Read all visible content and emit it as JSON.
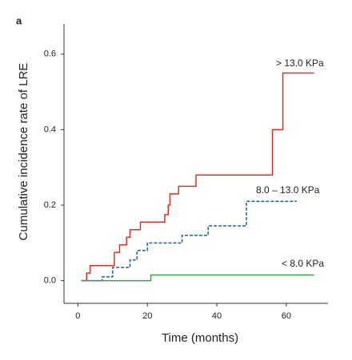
{
  "chart_data": {
    "type": "step",
    "panel_label": "a",
    "x_label": "Time (months)",
    "y_label": "Cumulative incidence rate of LRE",
    "xlim": [
      -4,
      72
    ],
    "ylim": [
      -0.06,
      0.68
    ],
    "xticks": [
      0,
      20,
      40,
      60
    ],
    "yticks": [
      {
        "value": 0,
        "label": "0.0"
      },
      {
        "value": 0.2,
        "label": "0.2"
      },
      {
        "value": 0.4,
        "label": "0.4"
      },
      {
        "value": 0.6,
        "label": "0.6"
      }
    ],
    "series": [
      {
        "name": "> 13.0 KPa",
        "color": "#e0302a",
        "dash": false,
        "x": [
          1,
          2.5,
          3.5,
          10.5,
          12,
          14,
          15,
          18,
          25,
          26,
          26.5,
          29,
          34,
          56,
          59,
          68
        ],
        "values": [
          0,
          0.02,
          0.04,
          0.075,
          0.095,
          0.115,
          0.135,
          0.155,
          0.175,
          0.2,
          0.23,
          0.25,
          0.28,
          0.4,
          0.55,
          0.55
        ]
      },
      {
        "name": "8.0 – 13.0 KPa",
        "color": "#1f5c9c",
        "dash": true,
        "x": [
          1,
          7,
          10,
          15,
          17,
          20,
          30,
          37.5,
          48.5,
          63
        ],
        "values": [
          0,
          0.01,
          0.035,
          0.055,
          0.08,
          0.1,
          0.12,
          0.145,
          0.21,
          0.21
        ]
      },
      {
        "name": "< 8.0 KPa",
        "color": "#3a9e48",
        "dash": false,
        "x": [
          1,
          21,
          68
        ],
        "values": [
          0,
          0.015,
          0.015
        ]
      }
    ]
  }
}
